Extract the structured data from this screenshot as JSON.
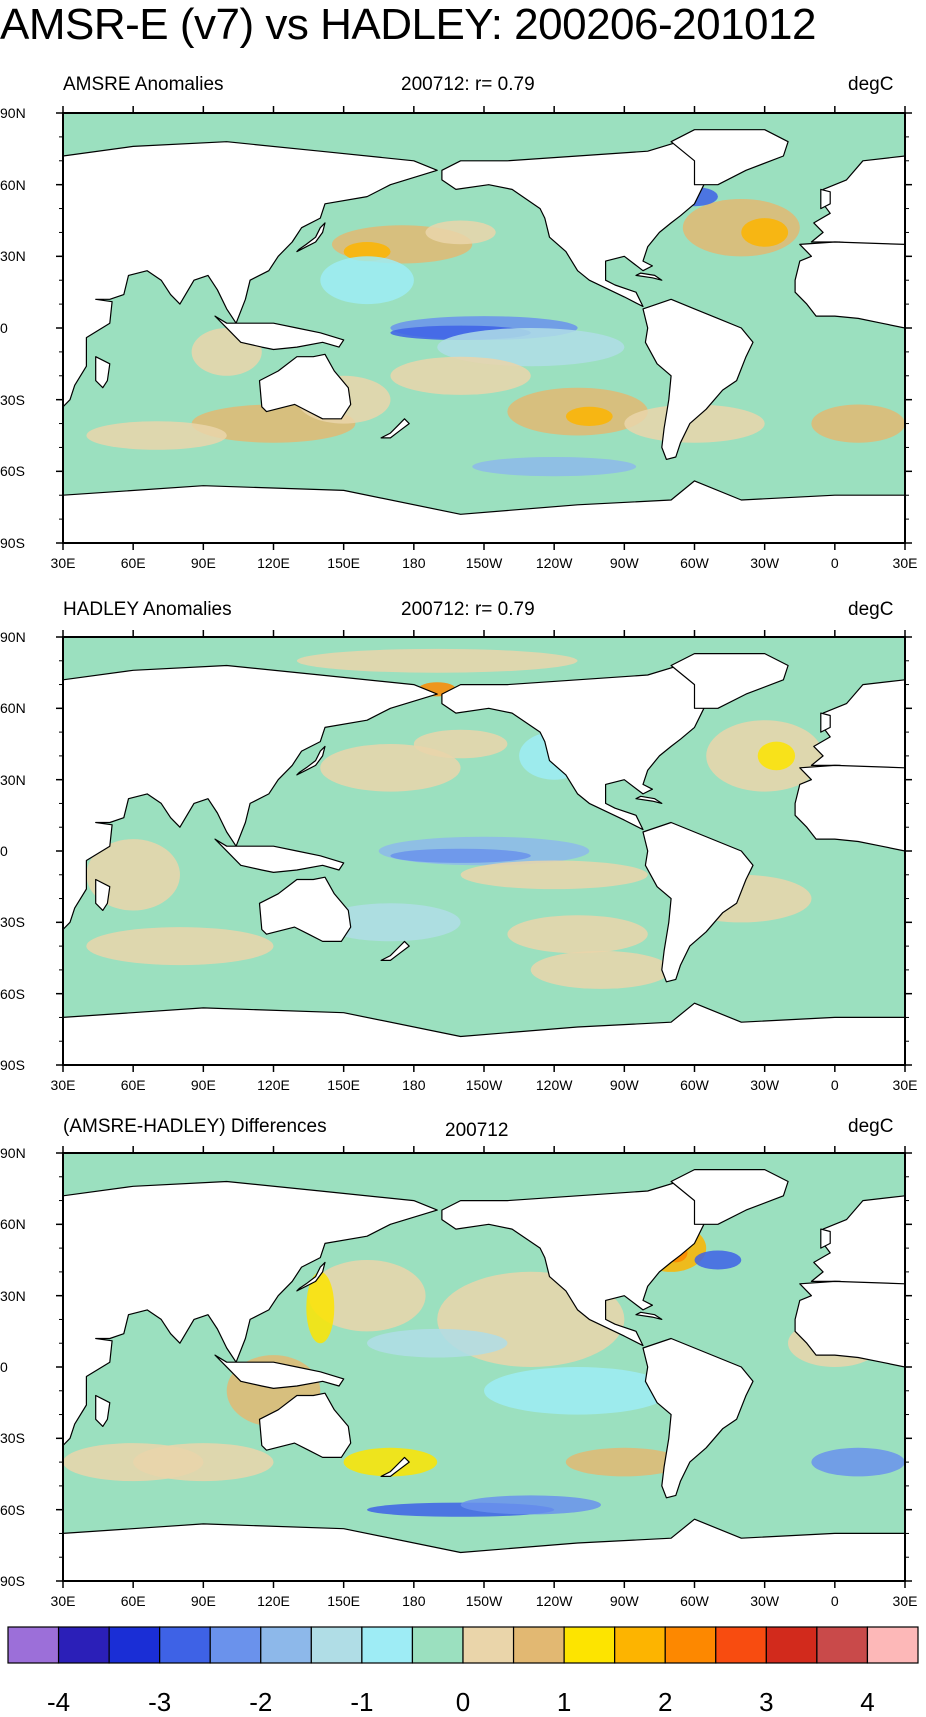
{
  "title": "AMSR-E (v7) vs HADLEY: 200206-201012",
  "panels": [
    {
      "left_title": "AMSRE Anomalies",
      "center_title": "200712: r= 0.79",
      "units": "degC"
    },
    {
      "left_title": "HADLEY Anomalies",
      "center_title": "200712: r= 0.79",
      "units": "degC"
    },
    {
      "left_title": "(AMSRE-HADLEY) Differences",
      "center_title": "200712",
      "units": "degC"
    }
  ],
  "lat_labels": [
    "90N",
    "60N",
    "30N",
    "0",
    "30S",
    "60S",
    "90S"
  ],
  "lon_labels": [
    "30E",
    "60E",
    "90E",
    "120E",
    "150E",
    "180",
    "150W",
    "120W",
    "90W",
    "60W",
    "30W",
    "0",
    "30E"
  ],
  "colorbar": {
    "colors": [
      "#9c6fd9",
      "#2b1fb8",
      "#1a2ed6",
      "#3e62e6",
      "#6a92ec",
      "#8db8ea",
      "#b0dde6",
      "#9eecf5",
      "#9be0bf",
      "#ead5aa",
      "#e2b872",
      "#fde400",
      "#fdb400",
      "#fd8800",
      "#f84c10",
      "#d22a1c",
      "#c94a4a",
      "#fdb8b8"
    ],
    "labels": [
      "-4",
      "-3",
      "-2",
      "-1",
      "0",
      "1",
      "2",
      "3",
      "4"
    ]
  },
  "colors": {
    "ocean_base": "#9be0bf",
    "land": "#ffffff",
    "coast": "#000000"
  }
}
